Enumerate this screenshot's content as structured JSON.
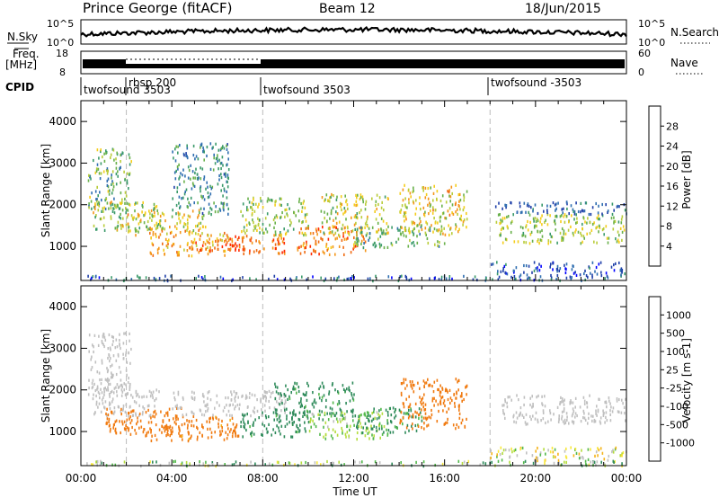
{
  "header": {
    "station": "Prince George (fitACF)",
    "beam": "Beam 12",
    "date": "18/Jun/2015"
  },
  "top_panels": {
    "nsky": {
      "label": "N.Sky",
      "ticks": [
        "10^5",
        "10^0"
      ]
    },
    "nsearch": {
      "label": "N.Search",
      "ticks": [
        "10^5",
        "10^0"
      ]
    },
    "freq": {
      "label_line1": "Freq.",
      "label_line2": "[MHz]",
      "ticks": [
        "18",
        "8"
      ]
    },
    "nave": {
      "label": "Nave",
      "ticks": [
        "60",
        "0"
      ]
    },
    "cpid": {
      "label": "CPID",
      "segments": [
        {
          "label": "twofsound 3503",
          "start_hour": 0
        },
        {
          "label": "rbsp 200",
          "start_hour": 2
        },
        {
          "label": "twofsound 3503",
          "start_hour": 8
        },
        {
          "label": "twofsound -3503",
          "start_hour": 18
        }
      ]
    }
  },
  "chart_data": [
    {
      "type": "heatmap",
      "panel": "power",
      "ylabel": "Slant Range [km]",
      "ylim": [
        180,
        4500
      ],
      "yticks": [
        "1000",
        "2000",
        "3000",
        "4000"
      ],
      "xlim_hours": [
        0,
        24
      ],
      "colorbar": {
        "label": "Power [dB]",
        "ticks": [
          "28",
          "24",
          "20",
          "16",
          "12",
          "8",
          "4"
        ],
        "colors": [
          "#0000ff",
          "#1f3fa8",
          "#2f6eb0",
          "#3a9a6a",
          "#68b04a",
          "#b9cc3a",
          "#f4cc1a",
          "#f4961a",
          "#f06a10",
          "#ff2a00"
        ]
      },
      "regions": [
        {
          "t": [
            0.0,
            24.0
          ],
          "r": [
            200,
            320
          ],
          "v": [
            2,
            12
          ]
        },
        {
          "t": [
            0.3,
            2.2
          ],
          "r": [
            1900,
            3400
          ],
          "v": [
            8,
            20
          ]
        },
        {
          "t": [
            0.5,
            3.5
          ],
          "r": [
            1400,
            2100
          ],
          "v": [
            10,
            24
          ]
        },
        {
          "t": [
            2.0,
            5.5
          ],
          "r": [
            1300,
            1900
          ],
          "v": [
            14,
            26
          ]
        },
        {
          "t": [
            3.0,
            6.5
          ],
          "r": [
            800,
            1400
          ],
          "v": [
            18,
            28
          ]
        },
        {
          "t": [
            5.0,
            7.5
          ],
          "r": [
            900,
            1250
          ],
          "v": [
            24,
            31
          ]
        },
        {
          "t": [
            4.0,
            6.5
          ],
          "r": [
            1800,
            3500
          ],
          "v": [
            6,
            14
          ]
        },
        {
          "t": [
            6.5,
            9.0
          ],
          "r": [
            850,
            1300
          ],
          "v": [
            22,
            31
          ]
        },
        {
          "t": [
            7.0,
            10.0
          ],
          "r": [
            1300,
            2200
          ],
          "v": [
            10,
            22
          ]
        },
        {
          "t": [
            9.5,
            12.5
          ],
          "r": [
            800,
            1500
          ],
          "v": [
            22,
            31
          ]
        },
        {
          "t": [
            10.5,
            13.5
          ],
          "r": [
            1300,
            2300
          ],
          "v": [
            12,
            24
          ]
        },
        {
          "t": [
            12.0,
            16.0
          ],
          "r": [
            1000,
            1500
          ],
          "v": [
            8,
            18
          ]
        },
        {
          "t": [
            14.0,
            17.0
          ],
          "r": [
            1300,
            2500
          ],
          "v": [
            14,
            26
          ]
        },
        {
          "t": [
            18.2,
            24.0
          ],
          "r": [
            1100,
            1800
          ],
          "v": [
            12,
            22
          ]
        },
        {
          "t": [
            18.2,
            24.0
          ],
          "r": [
            1800,
            2100
          ],
          "v": [
            4,
            10
          ]
        },
        {
          "t": [
            18.0,
            24.0
          ],
          "r": [
            330,
            650
          ],
          "v": [
            2,
            10
          ]
        }
      ]
    },
    {
      "type": "heatmap",
      "panel": "velocity",
      "ylabel": "Slant Range [km]",
      "xlabel": "Time UT",
      "ylim": [
        180,
        4500
      ],
      "yticks": [
        "1000",
        "2000",
        "3000",
        "4000"
      ],
      "xlim_hours": [
        0,
        24
      ],
      "xticks": [
        "00:00",
        "04:00",
        "08:00",
        "12:00",
        "16:00",
        "20:00",
        "00:00"
      ],
      "colorbar": {
        "label": "Velocity [m s-1]",
        "ticks": [
          "1000",
          "500",
          "100",
          "25",
          "-25",
          "-100",
          "-500",
          "-1000"
        ],
        "colors": [
          "#2a2aa0",
          "#2f66b8",
          "#2e8a5a",
          "#52b84a",
          "#b4dc3c",
          "#c0c0c0",
          "#f8e83c",
          "#f4b41a",
          "#f07a10",
          "#ff2a00"
        ]
      },
      "regions": [
        {
          "t": [
            0.0,
            24.0
          ],
          "r": [
            200,
            320
          ],
          "v": [
            -50,
            150
          ]
        },
        {
          "t": [
            0.3,
            2.2
          ],
          "r": [
            1900,
            3400
          ],
          "v": [
            -20,
            20
          ]
        },
        {
          "t": [
            0.5,
            3.5
          ],
          "r": [
            1400,
            2100
          ],
          "v": [
            -20,
            20
          ]
        },
        {
          "t": [
            1.0,
            4.5
          ],
          "r": [
            900,
            1600
          ],
          "v": [
            -300,
            -100
          ]
        },
        {
          "t": [
            3.0,
            7.0
          ],
          "r": [
            800,
            1400
          ],
          "v": [
            -300,
            -80
          ]
        },
        {
          "t": [
            4.0,
            9.0
          ],
          "r": [
            1400,
            2000
          ],
          "v": [
            -20,
            20
          ]
        },
        {
          "t": [
            7.0,
            10.0
          ],
          "r": [
            900,
            1500
          ],
          "v": [
            80,
            300
          ]
        },
        {
          "t": [
            8.5,
            12.0
          ],
          "r": [
            1300,
            2200
          ],
          "v": [
            80,
            400
          ]
        },
        {
          "t": [
            10.0,
            13.5
          ],
          "r": [
            850,
            1500
          ],
          "v": [
            20,
            80
          ]
        },
        {
          "t": [
            12.0,
            15.0
          ],
          "r": [
            1000,
            1600
          ],
          "v": [
            50,
            300
          ]
        },
        {
          "t": [
            14.0,
            17.0
          ],
          "r": [
            1100,
            2300
          ],
          "v": [
            -400,
            -100
          ]
        },
        {
          "t": [
            18.5,
            24.0
          ],
          "r": [
            1200,
            1900
          ],
          "v": [
            -20,
            20
          ]
        },
        {
          "t": [
            18.0,
            24.0
          ],
          "r": [
            330,
            650
          ],
          "v": [
            -100,
            100
          ]
        }
      ]
    }
  ]
}
